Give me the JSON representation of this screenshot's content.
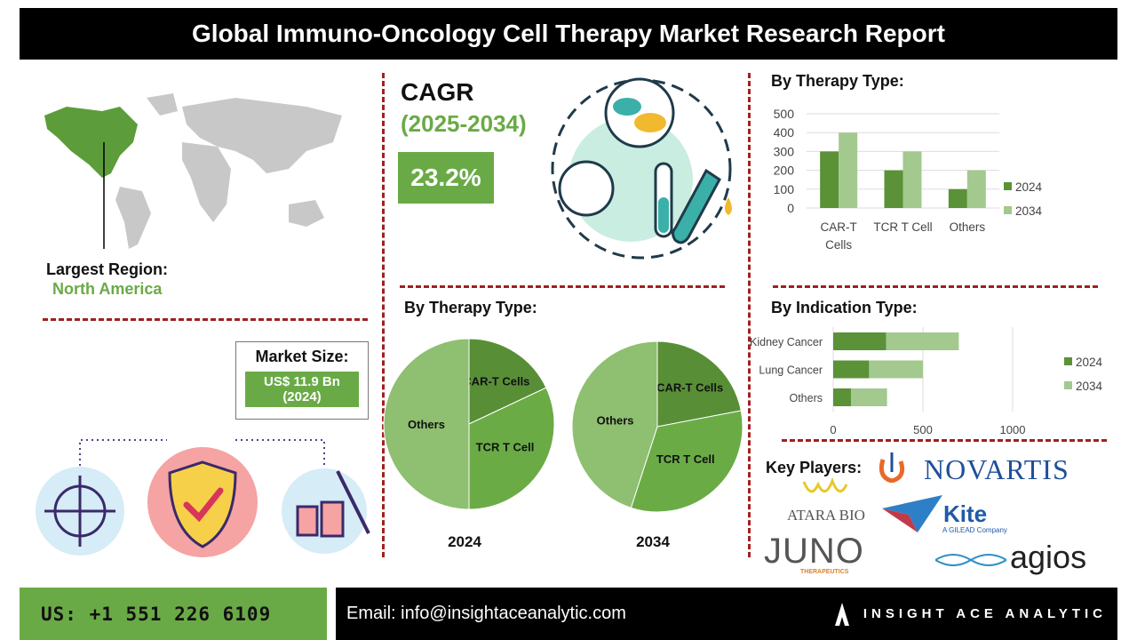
{
  "title": "Global Immuno-Oncology Cell Therapy Market Research Report",
  "region": {
    "label": "Largest Region:",
    "value": "North America"
  },
  "cagr": {
    "label": "CAGR",
    "period": "(2025-2034)",
    "value": "23.2%"
  },
  "market_size": {
    "label": "Market Size:",
    "value": "US$ 11.9 Bn",
    "year": "(2024)"
  },
  "key_players": {
    "label": "Key Players:",
    "logos": [
      "NOVARTIS",
      "ATARA BIO",
      "Kite",
      "A GILEAD Company",
      "JUNO",
      "THERAPEUTICS",
      "agios"
    ]
  },
  "footer": {
    "phone": "US: +1 551 226 6109",
    "email": "Email: info@insightaceanalytic.com",
    "brand": "INSIGHT ACE ANALYTIC"
  },
  "colors": {
    "accent": "#6aaa46",
    "dark_green": "#5b9137",
    "light_green": "#a3c98f",
    "divider": "#a31f1f"
  },
  "chart_data": [
    {
      "type": "bar",
      "title": "By Therapy Type:",
      "categories": [
        "CAR-T Cells",
        "TCR T Cell",
        "Others"
      ],
      "series": [
        {
          "name": "2024",
          "values": [
            300,
            200,
            100
          ]
        },
        {
          "name": "2034",
          "values": [
            400,
            300,
            200
          ]
        }
      ],
      "yticks": [
        0,
        100,
        200,
        300,
        400,
        500
      ],
      "ylim": [
        0,
        500
      ],
      "grid": true,
      "legend": "right"
    },
    {
      "type": "bar",
      "orientation": "horizontal",
      "stacked": true,
      "title": "By Indication Type:",
      "categories": [
        "Kidney Cancer",
        "Lung Cancer",
        "Others"
      ],
      "series": [
        {
          "name": "2024",
          "values": [
            295,
            200,
            100
          ]
        },
        {
          "name": "2034",
          "values": [
            405,
            300,
            200
          ]
        }
      ],
      "xticks": [
        0,
        500,
        1000
      ],
      "xlim": [
        0,
        1000
      ],
      "grid": true,
      "legend": "right"
    },
    {
      "type": "pie",
      "title": "By Therapy Type:",
      "pies": [
        {
          "label": "2024",
          "slices": [
            {
              "name": "CAR-T Cells",
              "value": 18
            },
            {
              "name": "TCR T Cell",
              "value": 32
            },
            {
              "name": "Others",
              "value": 50
            }
          ]
        },
        {
          "label": "2034",
          "slices": [
            {
              "name": "CAR-T Cells",
              "value": 22
            },
            {
              "name": "TCR T Cell",
              "value": 33
            },
            {
              "name": "Others",
              "value": 45
            }
          ]
        }
      ]
    }
  ]
}
